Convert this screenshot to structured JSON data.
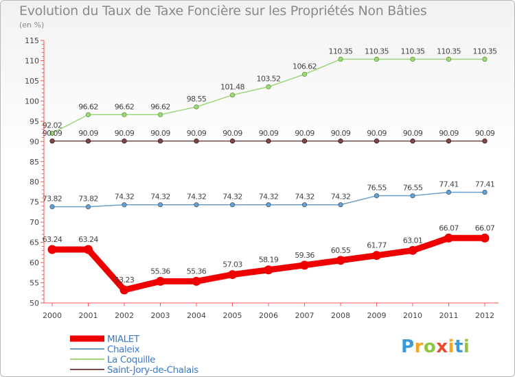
{
  "chart_data": {
    "type": "line",
    "title": "Evolution du Taux de Taxe Foncière sur les Propriétés Non Bâties",
    "ylabel": "(en %)",
    "xlabel": "",
    "ylim": [
      50,
      115
    ],
    "yticks": [
      50,
      55,
      60,
      65,
      70,
      75,
      80,
      85,
      90,
      95,
      100,
      105,
      110,
      115
    ],
    "categories": [
      "2000",
      "2001",
      "2002",
      "2003",
      "2004",
      "2005",
      "2006",
      "2007",
      "2008",
      "2009",
      "2010",
      "2011",
      "2012"
    ],
    "series": [
      {
        "name": "MIALET",
        "color": "#ee0000",
        "values": [
          63.24,
          63.24,
          53.23,
          55.36,
          55.36,
          57.03,
          58.19,
          59.36,
          60.55,
          61.77,
          63.01,
          66.07,
          66.07
        ],
        "labels": [
          "63.24",
          "63.24",
          "53.23",
          "55.36",
          "55.36",
          "57.03",
          "58.19",
          "59.36",
          "60.55",
          "61.77",
          "63.01",
          "66.07",
          "66.07"
        ]
      },
      {
        "name": "Chaleix",
        "color": "#6c9ec8",
        "values": [
          73.82,
          73.82,
          74.32,
          74.32,
          74.32,
          74.32,
          74.32,
          74.32,
          74.32,
          76.55,
          76.55,
          77.41,
          77.41
        ],
        "labels": [
          "73.82",
          "73.82",
          "74.32",
          "74.32",
          "74.32",
          "74.32",
          "74.32",
          "74.32",
          "74.32",
          "76.55",
          "76.55",
          "77.41",
          "77.41"
        ]
      },
      {
        "name": "La Coquille",
        "color": "#9ed67a",
        "values": [
          92.02,
          96.62,
          96.62,
          96.62,
          98.55,
          101.48,
          103.52,
          106.62,
          110.35,
          110.35,
          110.35,
          110.35,
          110.35
        ],
        "labels": [
          "92.02",
          "96.62",
          "96.62",
          "96.62",
          "98.55",
          "101.48",
          "103.52",
          "106.62",
          "110.35",
          "110.35",
          "110.35",
          "110.35",
          "110.35"
        ]
      },
      {
        "name": "Saint-Jory-de-Chalais",
        "color": "#7a4a4a",
        "values": [
          90.09,
          90.09,
          90.09,
          90.09,
          90.09,
          90.09,
          90.09,
          90.09,
          90.09,
          90.09,
          90.09,
          90.09,
          90.09
        ],
        "labels": [
          "90.09",
          "90.09",
          "90.09",
          "90.09",
          "90.09",
          "90.09",
          "90.09",
          "90.09",
          "90.09",
          "90.09",
          "90.09",
          "90.09",
          "90.09"
        ]
      }
    ],
    "legend_position": "bottom-left",
    "grid": false
  },
  "logo": {
    "text_p": "P",
    "text_r": "r",
    "text_o": "o",
    "text_x": "x",
    "text_i": "i",
    "text_t": "t",
    "text_i2": "i"
  }
}
